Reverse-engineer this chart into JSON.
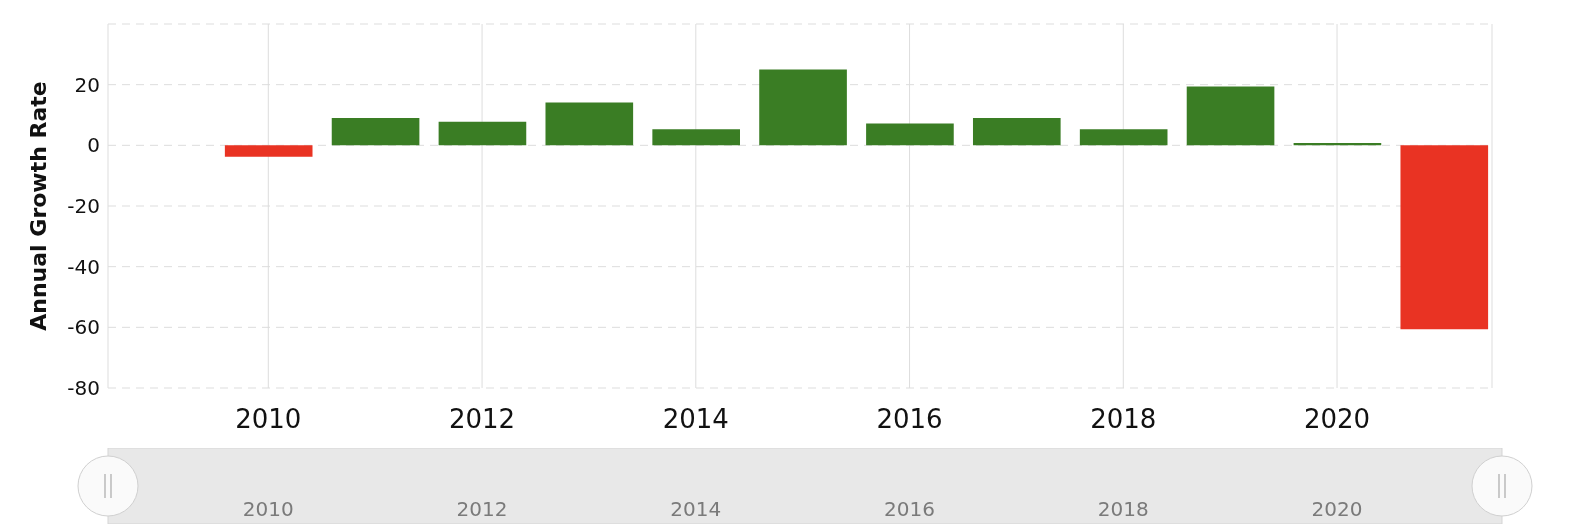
{
  "chart_data": {
    "type": "bar",
    "ylabel": "Annual Growth Rate",
    "x": [
      2010,
      2011,
      2012,
      2013,
      2014,
      2015,
      2016,
      2017,
      2018,
      2019,
      2020,
      2021
    ],
    "values": [
      -3.8,
      9,
      7.8,
      14.1,
      5.3,
      25,
      7.2,
      9,
      5.3,
      19.4,
      0.8,
      -60.6
    ],
    "colors": [
      "#e93323",
      "#3a7d24",
      "#3a7d24",
      "#3a7d24",
      "#3a7d24",
      "#3a7d24",
      "#3a7d24",
      "#3a7d24",
      "#3a7d24",
      "#3a7d24",
      "#3a7d24",
      "#e93323"
    ],
    "xlim": [
      2008.5,
      2021.45
    ],
    "xticks": [
      2010,
      2012,
      2014,
      2016,
      2018,
      2020
    ],
    "x2lim": [
      2008.5,
      2021.45
    ],
    "x2ticks": [
      2010,
      2012,
      2014,
      2016,
      2018,
      2020
    ],
    "ylim": [
      -80,
      40
    ],
    "yticks": [
      -80,
      -60,
      -40,
      -20,
      0,
      20,
      {
        "value": 40,
        "label": null
      }
    ],
    "grid": true
  }
}
